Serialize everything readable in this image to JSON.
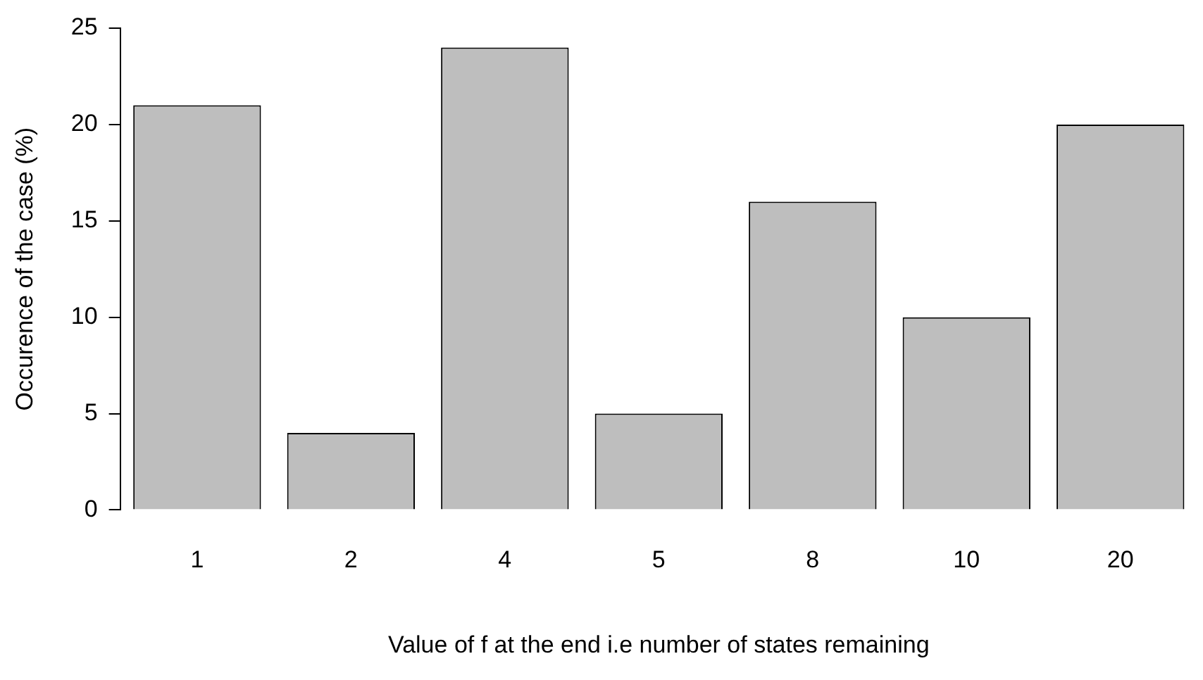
{
  "chart_data": {
    "type": "bar",
    "xlabel": "Value of f at the end i.e number of states remaining",
    "ylabel": "Occurence of the case (%)",
    "categories": [
      "1",
      "2",
      "4",
      "5",
      "8",
      "10",
      "20"
    ],
    "values": [
      21,
      4,
      24,
      5,
      16,
      10,
      20
    ],
    "color": "#bebebe",
    "ylim": [
      0,
      25
    ],
    "yticks": [
      0,
      5,
      10,
      15,
      20,
      25
    ],
    "grid": false,
    "legend": false
  }
}
